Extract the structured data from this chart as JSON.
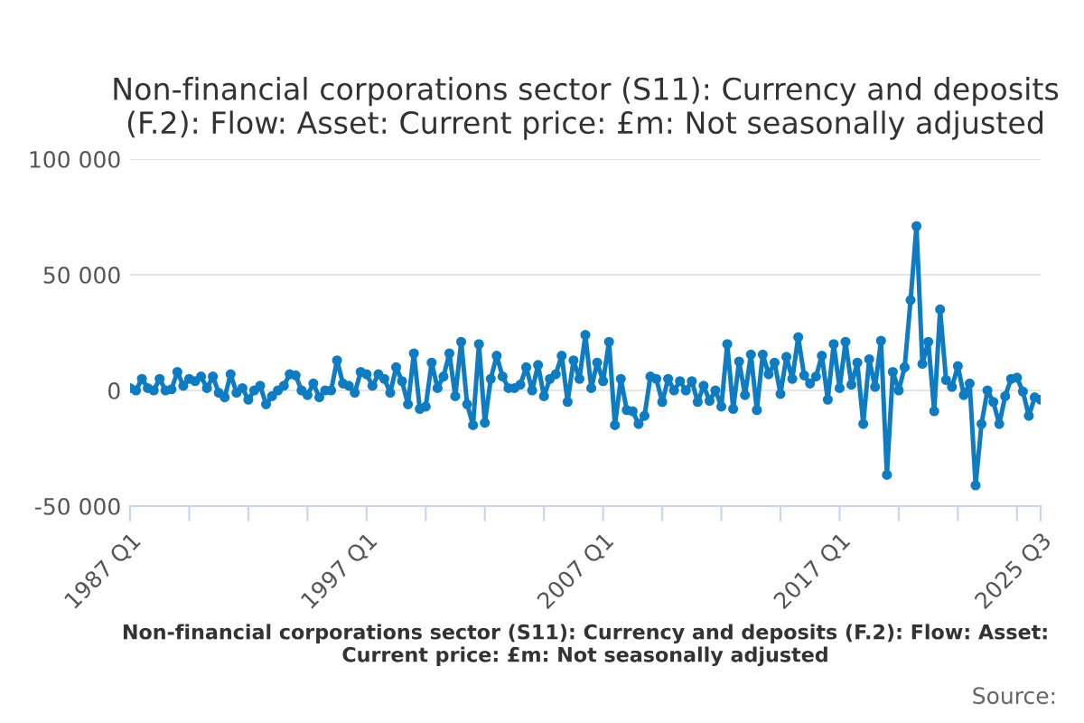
{
  "chart_data": {
    "type": "line",
    "title": "Non-financial corporations sector (S11): Currency and deposits (F.2): Flow: Asset: Current price: £m: Not seasonally adjusted",
    "xlabel": "Non-financial corporations sector (S11): Currency and deposits (F.2): Flow: Asset: Current price: £m: Not seasonally adjusted",
    "annotations": [
      "Source:"
    ],
    "categories": [
      "1987 Q1",
      null,
      null,
      null,
      null,
      null,
      null,
      null,
      null,
      null,
      null,
      null,
      null,
      null,
      null,
      null,
      null,
      null,
      null,
      null,
      null,
      null,
      null,
      null,
      null,
      null,
      null,
      null,
      null,
      null,
      null,
      null,
      null,
      null,
      null,
      null,
      null,
      null,
      null,
      null,
      "1997 Q1",
      null,
      null,
      null,
      null,
      null,
      null,
      null,
      null,
      null,
      null,
      null,
      null,
      null,
      null,
      null,
      null,
      null,
      null,
      null,
      null,
      null,
      null,
      null,
      null,
      null,
      null,
      null,
      null,
      null,
      null,
      null,
      null,
      null,
      null,
      null,
      null,
      null,
      null,
      null,
      "2007 Q1",
      null,
      null,
      null,
      null,
      null,
      null,
      null,
      null,
      null,
      null,
      null,
      null,
      null,
      null,
      null,
      null,
      null,
      null,
      null,
      null,
      null,
      null,
      null,
      null,
      null,
      null,
      null,
      null,
      null,
      null,
      null,
      null,
      null,
      null,
      null,
      null,
      null,
      null,
      null,
      "2017 Q1",
      null,
      null,
      null,
      null,
      null,
      null,
      null,
      null,
      null,
      null,
      null,
      null,
      null,
      null,
      null,
      null,
      null,
      null,
      null,
      null,
      null,
      null,
      null,
      null,
      null,
      null,
      null,
      null,
      null,
      null,
      null,
      null,
      null,
      "2025 Q3"
    ],
    "series": [
      {
        "color": "#0f7cc2",
        "values": [
          1000,
          0,
          5000,
          1000,
          0,
          5000,
          0,
          500,
          8000,
          2000,
          5000,
          4000,
          6000,
          1000,
          6000,
          -1000,
          -3000,
          7000,
          -1000,
          1000,
          -4000,
          0,
          2000,
          -6000,
          -2500,
          0,
          2000,
          7000,
          6500,
          0,
          -2000,
          3000,
          -3000,
          0,
          0,
          13000,
          3000,
          2000,
          -1000,
          8000,
          7000,
          2000,
          7000,
          5000,
          -1000,
          10000,
          4000,
          -6000,
          16000,
          -8000,
          -7000,
          12000,
          1000,
          6000,
          16000,
          -2500,
          21000,
          -6000,
          -15000,
          20000,
          -14000,
          5000,
          15000,
          6000,
          1000,
          1000,
          2500,
          10000,
          0,
          11000,
          -2500,
          5000,
          7000,
          15000,
          -5000,
          13000,
          5000,
          24000,
          1000,
          12000,
          4000,
          21000,
          -15000,
          5000,
          -8500,
          -9000,
          -14500,
          -11000,
          6000,
          5000,
          -5000,
          5000,
          0,
          4000,
          0,
          4000,
          -5000,
          2000,
          -4500,
          0,
          -7000,
          20000,
          -8000,
          12500,
          -2000,
          15500,
          -8500,
          15500,
          7000,
          12000,
          -1500,
          14500,
          5000,
          23000,
          6500,
          3000,
          6000,
          15000,
          -4000,
          20000,
          1000,
          21000,
          2500,
          12000,
          -14500,
          13500,
          1500,
          21500,
          -36500,
          8000,
          0,
          10000,
          39000,
          71000,
          11500,
          21000,
          -9000,
          35000,
          4500,
          1500,
          10500,
          -2000,
          3000,
          -41000,
          -14500,
          0,
          -5000,
          -14500,
          -2500,
          5000,
          5500,
          -500,
          -11000,
          -3000,
          -4000
        ]
      }
    ],
    "ylim": [
      -50000,
      100000
    ],
    "yticks": [
      {
        "value": -50000,
        "label": "-50 000"
      },
      {
        "value": 0,
        "label": "0"
      },
      {
        "value": 50000,
        "label": "50 000"
      },
      {
        "value": 100000,
        "label": "100 000"
      }
    ],
    "grid": "y",
    "marker": "circle",
    "line_style": "solid"
  }
}
